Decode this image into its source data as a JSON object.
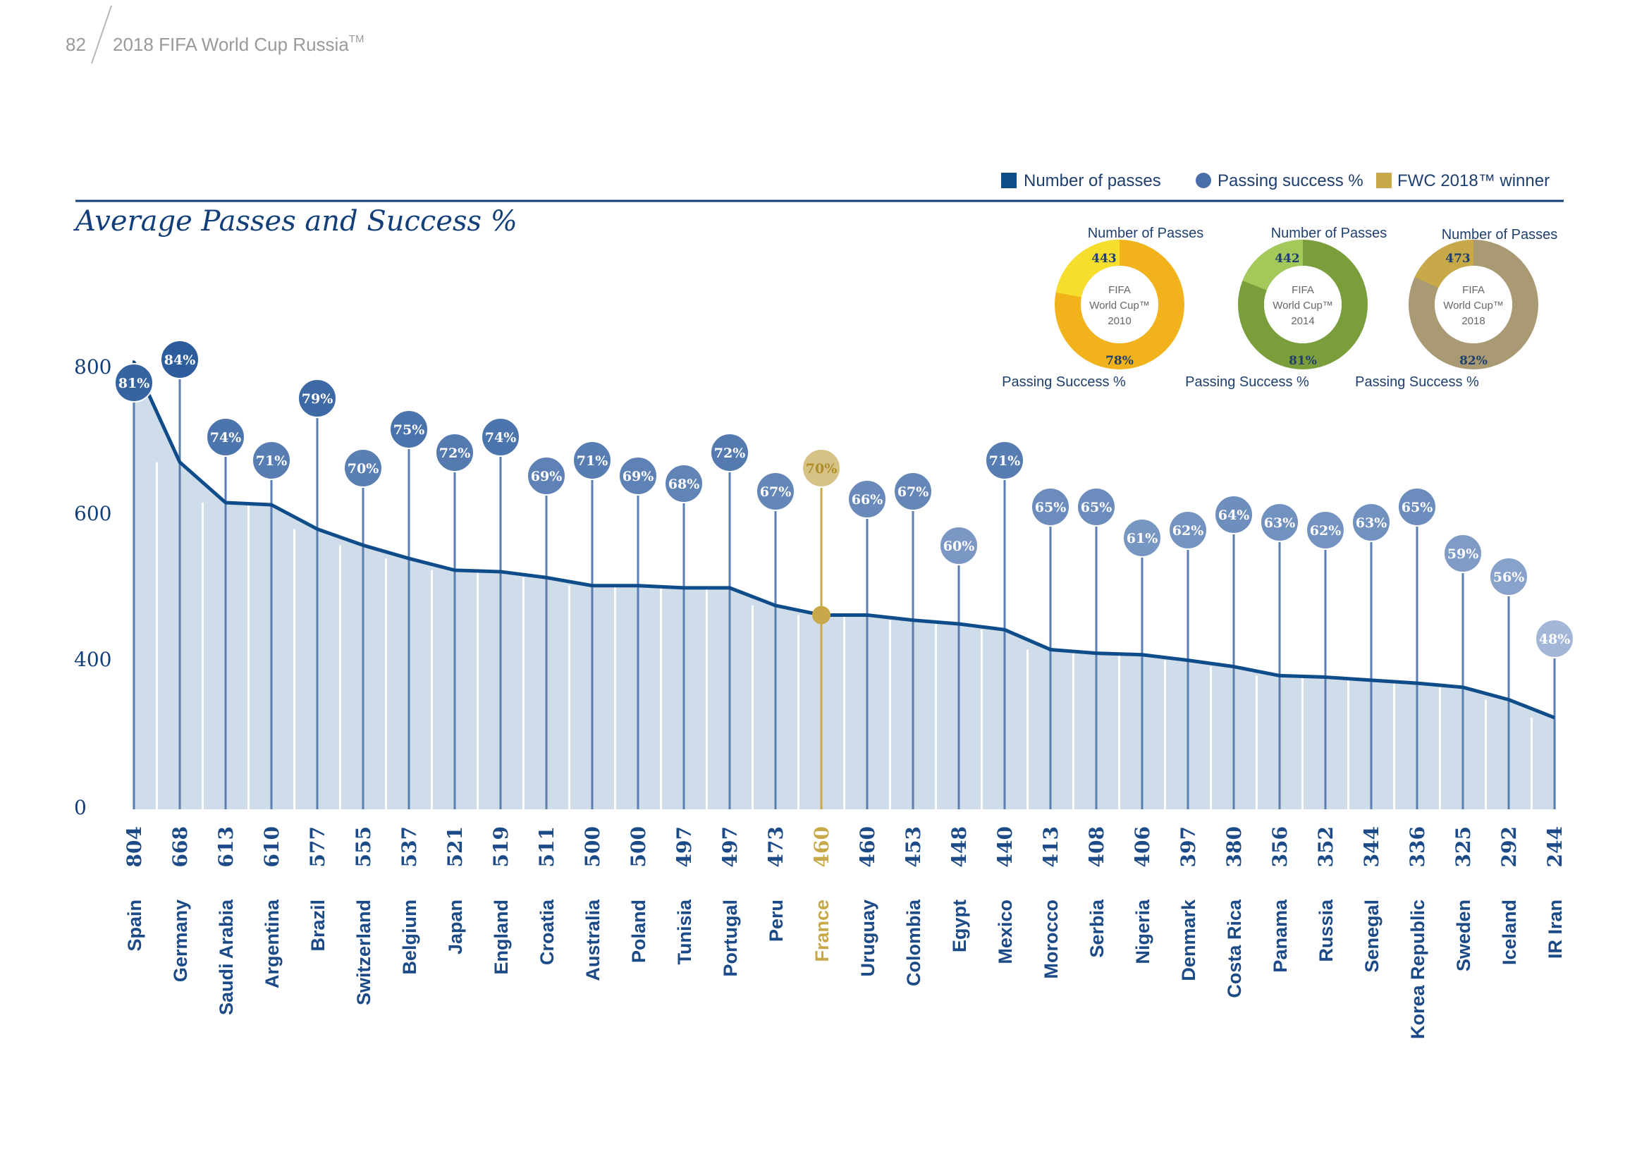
{
  "header": {
    "page_number": "82",
    "publication": "2018 FIFA World Cup Russia",
    "publication_tm": "TM"
  },
  "chart_title": "Average Passes and Success %",
  "legend": [
    {
      "label": "Number of passes",
      "shape": "square",
      "color": "#0f4c8a"
    },
    {
      "label": "Passing success %",
      "shape": "circle",
      "color": "#4a6ea8"
    },
    {
      "label": "FWC 2018™ winner",
      "shape": "square",
      "color": "#c7a94a"
    }
  ],
  "colors": {
    "line": "#0f4c8a",
    "area": "#cfdcea",
    "stem": "#5b7fb2",
    "bubble_high": "#2c5c9c",
    "bubble_low": "#a3b6d8",
    "winner": "#c7a94a",
    "winner_bubble": "#d6c285",
    "rule": "#123f7a"
  },
  "donuts": [
    {
      "caption_top": "Number of Passes",
      "center_lines": [
        "FIFA",
        "World Cup™",
        "2010"
      ],
      "passes": "443",
      "success": "78%",
      "success_value": 78,
      "caption_bottom": "Passing Success %",
      "main_color": "#f2b21c",
      "small_color": "#f6de2c"
    },
    {
      "caption_top": "Number of Passes",
      "center_lines": [
        "FIFA",
        "World Cup™",
        "2014"
      ],
      "passes": "442",
      "success": "81%",
      "success_value": 81,
      "caption_bottom": "Passing Success %",
      "main_color": "#7a9e3c",
      "small_color": "#a3c95a"
    },
    {
      "caption_top": "Number of Passes",
      "center_lines": [
        "FIFA",
        "World Cup™",
        "2018"
      ],
      "passes": "473",
      "success": "82%",
      "success_value": 82,
      "caption_bottom": "Passing Success %",
      "main_color": "#a99a73",
      "small_color": "#c7a94a"
    }
  ],
  "chart_data": {
    "type": "area",
    "title": "Average Passes and Success %",
    "yticks": [
      "800",
      "600",
      "400",
      "0"
    ],
    "winner": "France",
    "categories": [
      "Spain",
      "Germany",
      "Saudi Arabia",
      "Argentina",
      "Brazil",
      "Switzerland",
      "Belgium",
      "Japan",
      "England",
      "Croatia",
      "Australia",
      "Poland",
      "Tunisia",
      "Portugal",
      "Peru",
      "France",
      "Uruguay",
      "Colombia",
      "Egypt",
      "Mexico",
      "Morocco",
      "Serbia",
      "Nigeria",
      "Denmark",
      "Costa Rica",
      "Panama",
      "Russia",
      "Senegal",
      "Korea Republic",
      "Sweden",
      "Iceland",
      "IR Iran"
    ],
    "series": [
      {
        "name": "Number of passes",
        "values": [
          804,
          668,
          613,
          610,
          577,
          555,
          537,
          521,
          519,
          511,
          500,
          500,
          497,
          497,
          473,
          460,
          460,
          453,
          448,
          440,
          413,
          408,
          406,
          397,
          380,
          356,
          352,
          344,
          336,
          325,
          292,
          244
        ]
      },
      {
        "name": "Passing success %",
        "values": [
          81,
          84,
          74,
          71,
          79,
          70,
          75,
          72,
          74,
          69,
          71,
          69,
          68,
          72,
          67,
          70,
          66,
          67,
          60,
          71,
          65,
          65,
          61,
          62,
          64,
          63,
          62,
          63,
          65,
          59,
          56,
          48
        ]
      }
    ]
  }
}
